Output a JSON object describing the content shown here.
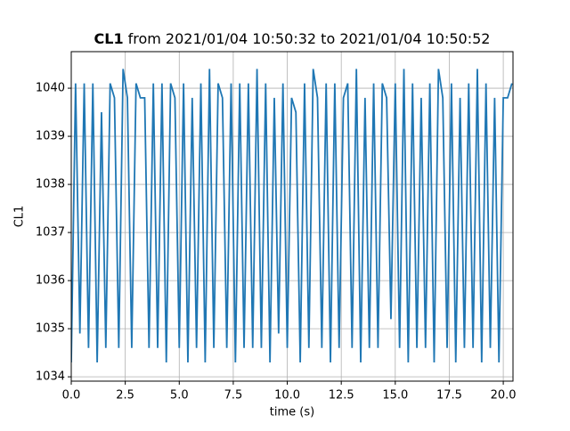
{
  "chart_data": {
    "type": "line",
    "title_parts": [
      "CL1",
      "from 2021/01/04 10:50:32 to 2021/01/04 10:50:52"
    ],
    "xlabel": "time (s)",
    "ylabel": "CL1",
    "color": "#1f77b4",
    "grid": true,
    "xlim": [
      0,
      20.45
    ],
    "ylim": [
      1033.91,
      1040.76
    ],
    "xticks": [
      {
        "value": 0,
        "label": "0.0"
      },
      {
        "value": 2.5,
        "label": "2.5"
      },
      {
        "value": 5,
        "label": "5.0"
      },
      {
        "value": 7.5,
        "label": "7.5"
      },
      {
        "value": 10,
        "label": "10.0"
      },
      {
        "value": 12.5,
        "label": "12.5"
      },
      {
        "value": 15,
        "label": "15.0"
      },
      {
        "value": 17.5,
        "label": "17.5"
      },
      {
        "value": 20,
        "label": "20.0"
      }
    ],
    "yticks": [
      1034,
      1035,
      1036,
      1037,
      1038,
      1039,
      1040
    ],
    "x": [
      0,
      0.2,
      0.4,
      0.6,
      0.8,
      1,
      1.2,
      1.4,
      1.6,
      1.8,
      2,
      2.2,
      2.4,
      2.6,
      2.8,
      3,
      3.2,
      3.4,
      3.6,
      3.8,
      4,
      4.2,
      4.4,
      4.6,
      4.8,
      5,
      5.2,
      5.4,
      5.6,
      5.8,
      6,
      6.2,
      6.4,
      6.6,
      6.8,
      7,
      7.2,
      7.4,
      7.6,
      7.8,
      8,
      8.2,
      8.4,
      8.6,
      8.8,
      9,
      9.2,
      9.4,
      9.6,
      9.8,
      10,
      10.2,
      10.4,
      10.6,
      10.8,
      11,
      11.2,
      11.4,
      11.6,
      11.8,
      12,
      12.2,
      12.4,
      12.6,
      12.8,
      13,
      13.2,
      13.4,
      13.6,
      13.8,
      14,
      14.2,
      14.4,
      14.6,
      14.8,
      15,
      15.2,
      15.4,
      15.6,
      15.8,
      16,
      16.2,
      16.4,
      16.6,
      16.8,
      17,
      17.2,
      17.4,
      17.6,
      17.8,
      18,
      18.2,
      18.4,
      18.6,
      18.8,
      19,
      19.2,
      19.4,
      19.6,
      19.8,
      20,
      20.2,
      20.4
    ],
    "values": [
      1034.3,
      1040.1,
      1034.9,
      1040.1,
      1034.6,
      1040.1,
      1034.3,
      1039.5,
      1034.6,
      1040.1,
      1039.8,
      1034.6,
      1040.4,
      1039.8,
      1034.6,
      1040.1,
      1039.8,
      1039.8,
      1034.6,
      1040.1,
      1034.6,
      1040.1,
      1034.3,
      1040.1,
      1039.8,
      1034.6,
      1040.1,
      1034.3,
      1039.8,
      1034.6,
      1040.1,
      1034.3,
      1040.4,
      1034.6,
      1040.1,
      1039.8,
      1034.6,
      1040.1,
      1034.3,
      1040.1,
      1034.6,
      1040.1,
      1034.6,
      1040.4,
      1034.6,
      1040.1,
      1034.3,
      1039.8,
      1034.9,
      1040.1,
      1034.6,
      1039.8,
      1039.5,
      1034.3,
      1040.1,
      1034.6,
      1040.4,
      1039.8,
      1034.6,
      1040.1,
      1034.3,
      1040.1,
      1034.6,
      1039.8,
      1040.1,
      1034.6,
      1040.4,
      1034.3,
      1039.8,
      1034.6,
      1040.1,
      1034.6,
      1040.1,
      1039.8,
      1035.2,
      1040.1,
      1034.6,
      1040.4,
      1034.3,
      1040.1,
      1034.6,
      1039.8,
      1034.6,
      1040.1,
      1034.3,
      1040.4,
      1039.8,
      1034.6,
      1040.1,
      1034.3,
      1039.8,
      1034.6,
      1040.1,
      1034.6,
      1040.4,
      1034.3,
      1040.1,
      1034.6,
      1039.8,
      1034.3,
      1039.8,
      1039.8,
      1040.1
    ]
  }
}
